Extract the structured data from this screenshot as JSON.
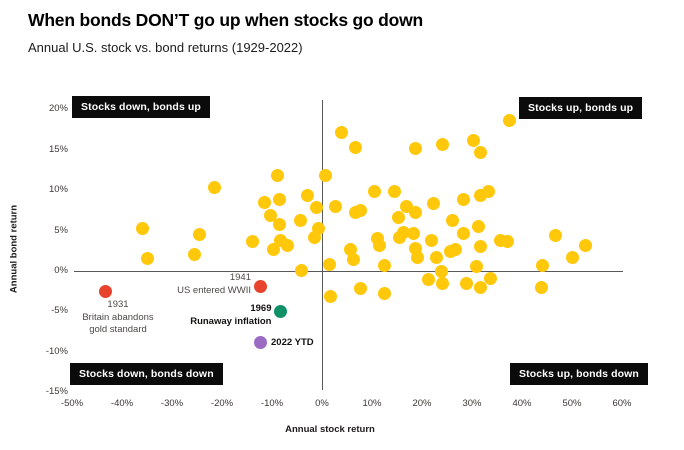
{
  "header": {
    "title": "When bonds DON’T go up when stocks go down",
    "subtitle": "Annual U.S. stock vs. bond returns (1929-2022)"
  },
  "chart_data": {
    "type": "scatter",
    "title": "When bonds DON’T go up when stocks go down",
    "subtitle": "Annual U.S. stock vs. bond returns (1929-2022)",
    "xlabel": "Annual stock return",
    "ylabel": "Annual bond return",
    "xlim": [
      -55,
      62
    ],
    "ylim": [
      -16,
      21
    ],
    "grid": false,
    "legend": "none",
    "point_color": "#FFC80A",
    "x_ticks": [
      {
        "value": -50,
        "label": "-50%"
      },
      {
        "value": -40,
        "label": "-40%"
      },
      {
        "value": -30,
        "label": "-30%"
      },
      {
        "value": -20,
        "label": "-20%"
      },
      {
        "value": -10,
        "label": "-10%"
      },
      {
        "value": 0,
        "label": "0%"
      },
      {
        "value": 10,
        "label": "10%"
      },
      {
        "value": 20,
        "label": "20%"
      },
      {
        "value": 30,
        "label": "30%"
      },
      {
        "value": 40,
        "label": "40%"
      },
      {
        "value": 50,
        "label": "50%"
      },
      {
        "value": 60,
        "label": "60%"
      }
    ],
    "y_ticks": [
      {
        "value": 20,
        "label": "20%"
      },
      {
        "value": 15,
        "label": "15%"
      },
      {
        "value": 10,
        "label": "10%"
      },
      {
        "value": 5,
        "label": "5%"
      },
      {
        "value": 0,
        "label": "0%"
      },
      {
        "value": -5,
        "label": "-5%"
      },
      {
        "value": -10,
        "label": "-10%"
      },
      {
        "value": -15,
        "label": "-15%"
      }
    ],
    "quadrant_labels": {
      "top_left": "Stocks down, bonds up",
      "top_right": "Stocks up, bonds up",
      "bottom_left": "Stocks down, bonds down",
      "bottom_right": "Stocks up, bonds down"
    },
    "series": [
      {
        "name": "Annual stock/bond returns (yearly observations)",
        "color": "#FFC80A",
        "points": [
          [
            -36,
            5.3
          ],
          [
            -35,
            1.5
          ],
          [
            -25.5,
            2
          ],
          [
            -24.5,
            4.5
          ],
          [
            -21.5,
            10.3
          ],
          [
            -14,
            3.6
          ],
          [
            -11.5,
            8.5
          ],
          [
            -10.3,
            6.9
          ],
          [
            -9.7,
            2.7
          ],
          [
            -9,
            11.8
          ],
          [
            -8.5,
            8.8
          ],
          [
            -8.5,
            5.7
          ],
          [
            -8.3,
            3.8
          ],
          [
            -7,
            3.2
          ],
          [
            -4.4,
            6.3
          ],
          [
            -4.2,
            0.1
          ],
          [
            -2.9,
            9.4
          ],
          [
            -1.6,
            4.1
          ],
          [
            -1.1,
            7.9
          ],
          [
            -0.8,
            5.3
          ],
          [
            0.6,
            11.8
          ],
          [
            1.5,
            0.8
          ],
          [
            2.6,
            8
          ],
          [
            3.9,
            17.1
          ],
          [
            6.6,
            15.3
          ],
          [
            6.6,
            7.3
          ],
          [
            7.6,
            7.5
          ],
          [
            5.6,
            2.7
          ],
          [
            6.3,
            1.4
          ],
          [
            10.4,
            9.8
          ],
          [
            11,
            4
          ],
          [
            11.4,
            3.2
          ],
          [
            12.4,
            0.7
          ],
          [
            14.4,
            9.8
          ],
          [
            15.3,
            6.6
          ],
          [
            15.4,
            4.2
          ],
          [
            16.3,
            4.8
          ],
          [
            16.9,
            8
          ],
          [
            18.3,
            4.6
          ],
          [
            18.6,
            7.3
          ],
          [
            18.6,
            15.2
          ],
          [
            18.6,
            2.8
          ],
          [
            19,
            1.7
          ],
          [
            21.9,
            3.8
          ],
          [
            22.3,
            8.4
          ],
          [
            22.8,
            1.7
          ],
          [
            24.1,
            15.6
          ],
          [
            25.6,
            2.4
          ],
          [
            26.1,
            6.2
          ],
          [
            26.6,
            2.7
          ],
          [
            28.3,
            4.6
          ],
          [
            28.3,
            8.9
          ],
          [
            30.3,
            16.2
          ],
          [
            30.9,
            0.5
          ],
          [
            31.6,
            3
          ],
          [
            31.6,
            14.7
          ],
          [
            31.6,
            9.4
          ],
          [
            33.3,
            9.8
          ],
          [
            31.2,
            5.5
          ],
          [
            35.6,
            3.8
          ],
          [
            37,
            3.7
          ],
          [
            37.4,
            18.6
          ],
          [
            44.1,
            0.7
          ],
          [
            46.7,
            4.4
          ],
          [
            50.1,
            1.7
          ],
          [
            52.6,
            3.1
          ],
          [
            1.6,
            -3.2
          ],
          [
            7.6,
            -2.2
          ],
          [
            12.5,
            -2.8
          ],
          [
            21.3,
            -1
          ],
          [
            23.9,
            -0.1
          ],
          [
            24.1,
            -1.5
          ],
          [
            28.9,
            -1.5
          ],
          [
            31.6,
            -2.1
          ],
          [
            33.6,
            -0.9
          ],
          [
            43.9,
            -2.1
          ]
        ]
      }
    ],
    "annotated_points": [
      {
        "year": "1931",
        "note_lines": [
          "Britain abandons",
          "gold standard"
        ],
        "bold": false,
        "color": "#E8432D",
        "stock": -43.4,
        "bond": -2.5,
        "label_side": "below",
        "label_dy": 8
      },
      {
        "year": "1941",
        "note_lines": [
          "US entered WWII"
        ],
        "bold": false,
        "color": "#E8432D",
        "stock": -12.4,
        "bond": -1.9,
        "label_side": "left",
        "label_dy": -14
      },
      {
        "year": "1969",
        "note_lines": [
          "Runaway inflation"
        ],
        "bold": true,
        "color": "#0F9168",
        "stock": -8.3,
        "bond": -5,
        "label_side": "left",
        "label_dy": -8
      },
      {
        "year": "2022 YTD",
        "note_lines": [],
        "bold": true,
        "color": "#9B6BC4",
        "stock": -12.4,
        "bond": -8.9,
        "label_side": "right",
        "label_dy": -6
      }
    ]
  }
}
